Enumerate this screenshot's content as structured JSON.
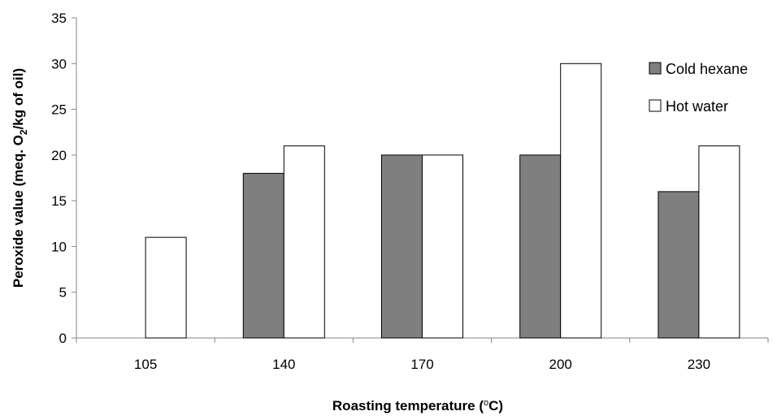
{
  "chart_data": {
    "type": "bar",
    "categories": [
      "105",
      "140",
      "170",
      "200",
      "230"
    ],
    "series": [
      {
        "name": "Cold hexane",
        "values": [
          null,
          18,
          20,
          20,
          16
        ],
        "color": "#7f7f7f"
      },
      {
        "name": "Hot water",
        "values": [
          11,
          21,
          20,
          30,
          21
        ],
        "color": "#ffffff"
      }
    ],
    "ylim": [
      0,
      35
    ],
    "yticks": [
      0,
      5,
      10,
      15,
      20,
      25,
      30,
      35
    ],
    "ylabel_parts": [
      "Peroxide value (meq. O",
      "2",
      "/kg of oil)"
    ],
    "xlabel_parts": [
      "Roasting temperature (",
      "o",
      "C)"
    ],
    "grid": false,
    "legend_position": "right"
  }
}
